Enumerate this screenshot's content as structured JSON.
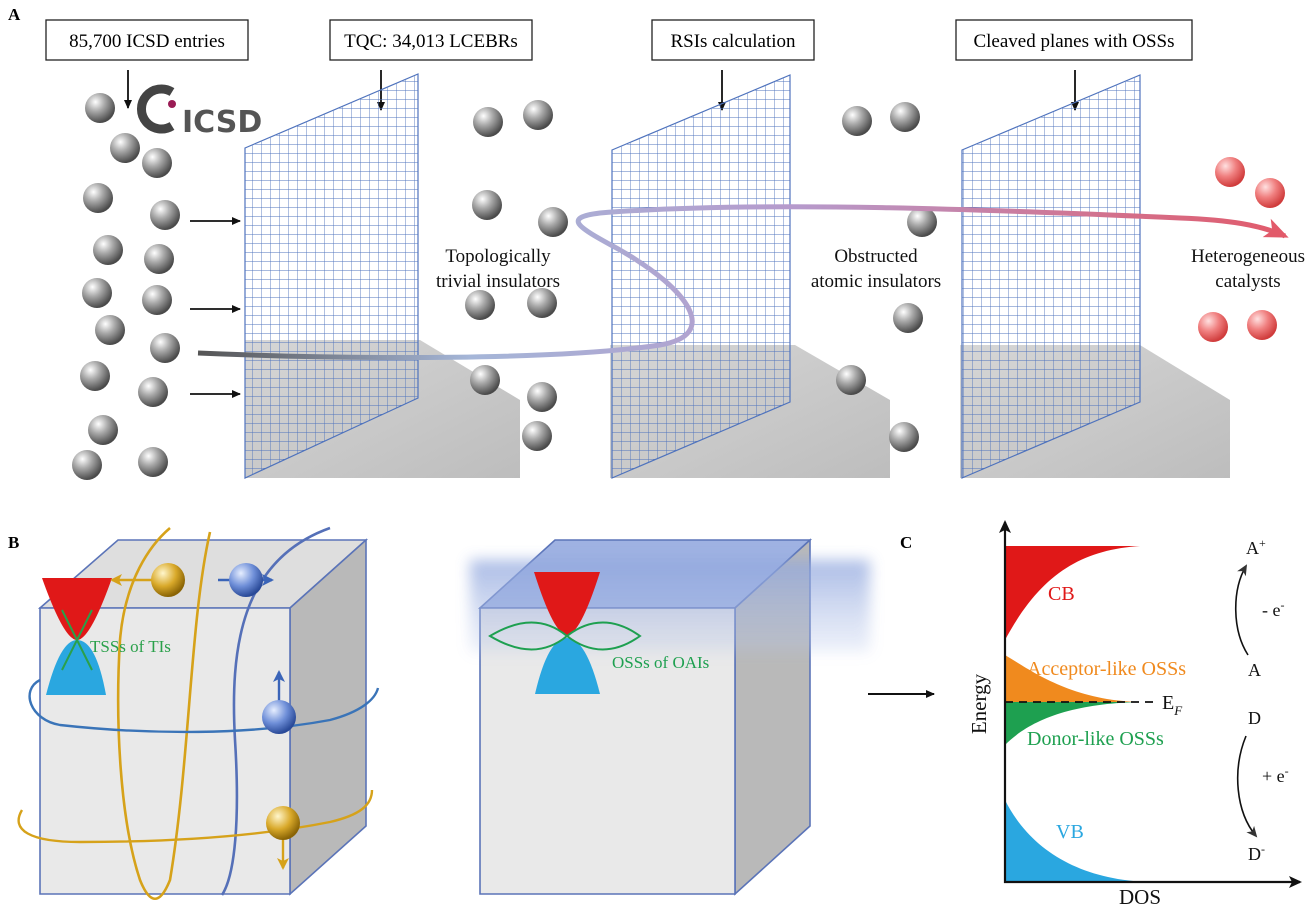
{
  "panels": {
    "a": "A",
    "b": "B",
    "c": "C"
  },
  "panel_a": {
    "steps": [
      "85,700 ICSD entries",
      "TQC: 34,013 LCEBRs",
      "RSIs calculation",
      "Cleaved planes with OSSs"
    ],
    "logo_text": "ICSD",
    "group_labels": {
      "trivial_line1": "Topologically",
      "trivial_line2": "trivial insulators",
      "obstructed_line1": "Obstructed",
      "obstructed_line2": "atomic insulators",
      "catalysts_line1": "Heterogeneous",
      "catalysts_line2": "catalysts"
    },
    "colors": {
      "sphere": "#8a8a8a",
      "catalyst": "#ef6b6b",
      "grid": "#5577bb",
      "arrow_end": "#e25a6a"
    }
  },
  "panel_b": {
    "tss_label": "TSSs of TIs",
    "oss_label": "OSSs of OAIs",
    "colors": {
      "cone_top": "#e01818",
      "cone_bottom": "#2aa7e0",
      "tss_line": "#2aa04a",
      "orbit_gold": "#d6a21a",
      "orbit_blue": "#3a64b8"
    }
  },
  "panel_c": {
    "axis_y": "Energy",
    "axis_x": "DOS",
    "cb": "CB",
    "vb": "VB",
    "acceptor": "Acceptor-like OSSs",
    "donor": "Donor-like OSSs",
    "fermi": "E",
    "fermi_sub": "F",
    "a_plus": "A",
    "a_plus_sup": "+",
    "a": "A",
    "minus_e": "- e",
    "minus_e_sup": "-",
    "d": "D",
    "plus_e": "+ e",
    "plus_e_sup": "-",
    "d_minus": "D",
    "d_minus_sup": "-",
    "colors": {
      "cb": "#e01818",
      "vb": "#2aa7e0",
      "acceptor": "#f08a1e",
      "donor": "#1ea050"
    }
  }
}
